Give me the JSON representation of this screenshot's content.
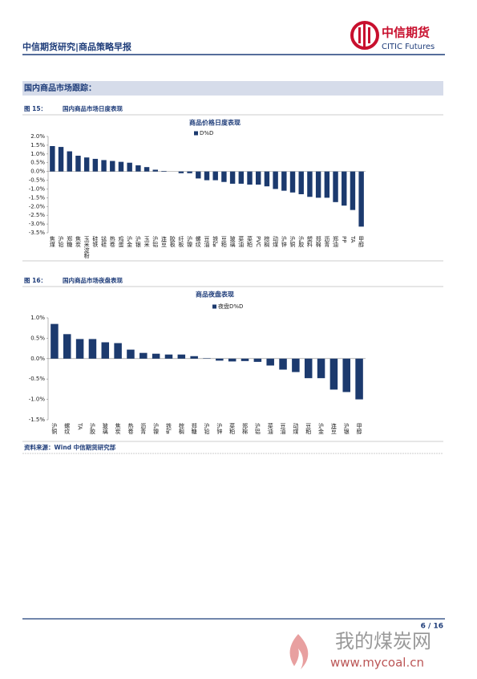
{
  "header": {
    "title": "中信期货研究|商品策略早报",
    "logo_cn": "中信期货",
    "logo_en": "CITIC Futures"
  },
  "section_title": "国内商品市场跟踪：",
  "figures": [
    {
      "number": "图 15：",
      "caption": "国内商品市场日度表现"
    },
    {
      "number": "图 16：",
      "caption": "国内商品市场夜盘表现"
    }
  ],
  "chart_data": [
    {
      "type": "bar",
      "title": "商品价格日度表现",
      "color": "#1c3a6e",
      "series": [
        {
          "name": "D%D",
          "color": "#1c3a6e",
          "values": [
            1.45,
            1.4,
            1.15,
            0.9,
            0.8,
            0.72,
            0.65,
            0.6,
            0.55,
            0.5,
            0.35,
            0.25,
            0.1,
            0.03,
            0.0,
            -0.1,
            -0.1,
            -0.4,
            -0.5,
            -0.5,
            -0.6,
            -0.7,
            -0.7,
            -0.75,
            -0.75,
            -0.85,
            -1.0,
            -1.1,
            -1.2,
            -1.3,
            -1.45,
            -1.5,
            -1.5,
            -1.75,
            -1.95,
            -2.2,
            -3.15
          ]
        }
      ],
      "categories": [
        "焦煤",
        "沪铅",
        "郑糖",
        "焦炭",
        "玉米淀粉",
        "硅铁",
        "锰硅",
        "热卷",
        "鸡蛋",
        "沪金",
        "沪银",
        "玉米",
        "沪铝",
        "连豆",
        "胶板",
        "纤板",
        "沪镍",
        "螺纹",
        "豆油",
        "铁矿",
        "豆粕",
        "玻璃",
        "菜油",
        "菜粕",
        "PVC",
        "棕榈",
        "动煤",
        "沪锌",
        "沪铜",
        "沪胶",
        "塑料",
        "郑棉",
        "沥青",
        "郑油",
        "PP",
        "TA",
        "甲醇"
      ],
      "ylim": [
        -3.5,
        2.0
      ],
      "yticks": [
        {
          "value": 2.0,
          "label": "2.0%"
        },
        {
          "value": 1.5,
          "label": "1.5%"
        },
        {
          "value": 1.0,
          "label": "1.0%"
        },
        {
          "value": 0.5,
          "label": "0.5%"
        },
        {
          "value": 0.0,
          "label": "0.0%"
        },
        {
          "value": -0.5,
          "label": "-0.5%"
        },
        {
          "value": -1.0,
          "label": "-1.0%"
        },
        {
          "value": -1.5,
          "label": "-1.5%"
        },
        {
          "value": -2.0,
          "label": "-2.0%"
        },
        {
          "value": -2.5,
          "label": "-2.5%"
        },
        {
          "value": -3.0,
          "label": "-3.0%"
        },
        {
          "value": -3.5,
          "label": "-3.5%"
        }
      ],
      "legend": "top"
    },
    {
      "type": "bar",
      "title": "商品夜盘表现",
      "color": "#1c3a6e",
      "series": [
        {
          "name": "夜盘D%D",
          "color": "#1c3a6e",
          "values": [
            0.85,
            0.6,
            0.48,
            0.48,
            0.4,
            0.38,
            0.22,
            0.14,
            0.12,
            0.1,
            0.1,
            0.06,
            0.01,
            -0.05,
            -0.07,
            -0.06,
            -0.08,
            -0.17,
            -0.27,
            -0.33,
            -0.48,
            -0.48,
            -0.76,
            -0.82,
            -1.0
          ]
        }
      ],
      "categories": [
        "沪铜",
        "螺纹",
        "TA",
        "沪胶",
        "玻璃",
        "焦炭",
        "热卷",
        "沥青",
        "沪镍",
        "铁矿",
        "棕榈",
        "郑糖",
        "沪铅",
        "沪锌",
        "菜粕",
        "郑棉",
        "沪铝",
        "菜油",
        "豆油",
        "动煤",
        "豆粕",
        "沪金",
        "连豆",
        "沪银",
        "甲醇"
      ],
      "ylim": [
        -1.5,
        1.0
      ],
      "yticks": [
        {
          "value": 1.0,
          "label": "1.0%"
        },
        {
          "value": 0.5,
          "label": "0.5%"
        },
        {
          "value": 0.0,
          "label": "0.0%"
        },
        {
          "value": -0.5,
          "label": "-0.5%"
        },
        {
          "value": -1.0,
          "label": "-1.0%"
        },
        {
          "value": -1.5,
          "label": "-1.5%"
        }
      ],
      "legend": "top"
    }
  ],
  "source": "资料来源：Wind  中信期货研究部",
  "footer": {
    "page": "6 / 16"
  },
  "watermark": {
    "cn": "我的煤炭网",
    "url": "www.mycoal.cn"
  }
}
